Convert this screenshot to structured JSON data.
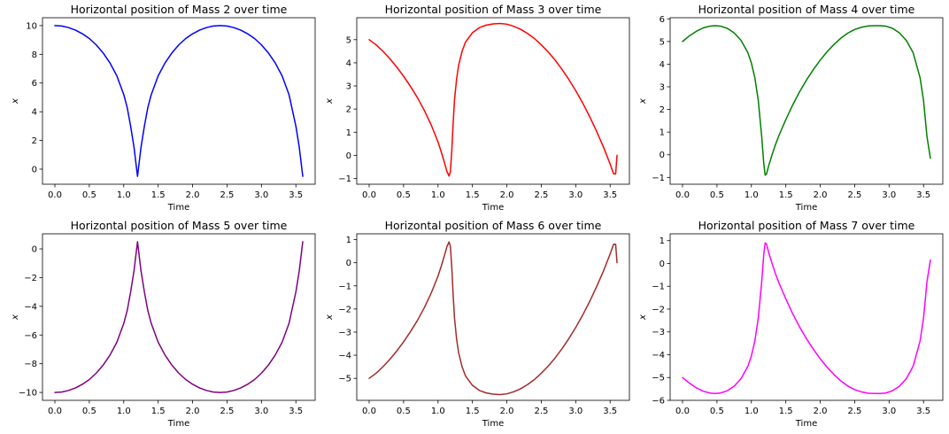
{
  "chart_data": [
    {
      "type": "line",
      "title": "Horizontal position of Mass 2 over time",
      "xlabel": "Time",
      "ylabel": "x",
      "xlim": [
        -0.18,
        3.78
      ],
      "ylim": [
        -1.05,
        10.55
      ],
      "xticks": [
        0.0,
        0.5,
        1.0,
        1.5,
        2.0,
        2.5,
        3.0,
        3.5
      ],
      "xtick_labels": [
        "0.0",
        "0.5",
        "1.0",
        "1.5",
        "2.0",
        "2.5",
        "3.0",
        "3.5"
      ],
      "yticks": [
        0,
        2,
        4,
        6,
        8,
        10
      ],
      "ytick_labels": [
        "0",
        "2",
        "4",
        "6",
        "8",
        "10"
      ],
      "grid": false,
      "series": [
        {
          "color": "#0000ff",
          "x": [
            0,
            0.1,
            0.2,
            0.3,
            0.4,
            0.5,
            0.6,
            0.7,
            0.8,
            0.9,
            1.0,
            1.05,
            1.1,
            1.15,
            1.2,
            1.25,
            1.3,
            1.35,
            1.4,
            1.5,
            1.6,
            1.7,
            1.8,
            1.9,
            2.0,
            2.1,
            2.2,
            2.3,
            2.4,
            2.5,
            2.6,
            2.7,
            2.8,
            2.9,
            3.0,
            3.1,
            3.2,
            3.3,
            3.4,
            3.5,
            3.55,
            3.6
          ],
          "y": [
            10.0,
            9.97,
            9.86,
            9.68,
            9.43,
            9.1,
            8.66,
            8.1,
            7.4,
            6.5,
            5.2,
            4.3,
            3.0,
            1.5,
            -0.5,
            1.5,
            3.0,
            4.3,
            5.2,
            6.5,
            7.4,
            8.1,
            8.66,
            9.1,
            9.43,
            9.68,
            9.86,
            9.97,
            10.0,
            9.97,
            9.86,
            9.68,
            9.43,
            9.1,
            8.66,
            8.1,
            7.4,
            6.5,
            5.2,
            3.0,
            1.5,
            -0.5
          ]
        }
      ]
    },
    {
      "type": "line",
      "title": "Horizontal position of Mass 3 over time",
      "xlabel": "Time",
      "ylabel": "x",
      "xlim": [
        -0.18,
        3.78
      ],
      "ylim": [
        -1.25,
        5.95
      ],
      "xticks": [
        0.0,
        0.5,
        1.0,
        1.5,
        2.0,
        2.5,
        3.0,
        3.5
      ],
      "xtick_labels": [
        "0.0",
        "0.5",
        "1.0",
        "1.5",
        "2.0",
        "2.5",
        "3.0",
        "3.5"
      ],
      "yticks": [
        -1,
        0,
        1,
        2,
        3,
        4,
        5
      ],
      "ytick_labels": [
        "−1",
        "0",
        "1",
        "2",
        "3",
        "4",
        "5"
      ],
      "grid": false,
      "series": [
        {
          "color": "#ff0000",
          "x": [
            0,
            0.1,
            0.2,
            0.3,
            0.4,
            0.5,
            0.6,
            0.7,
            0.8,
            0.9,
            1.0,
            1.05,
            1.1,
            1.13,
            1.16,
            1.18,
            1.2,
            1.22,
            1.24,
            1.27,
            1.3,
            1.35,
            1.4,
            1.5,
            1.6,
            1.7,
            1.8,
            1.9,
            2.0,
            2.1,
            2.2,
            2.3,
            2.4,
            2.5,
            2.6,
            2.7,
            2.8,
            2.9,
            3.0,
            3.1,
            3.2,
            3.3,
            3.4,
            3.5,
            3.55,
            3.58,
            3.6
          ],
          "y": [
            5.0,
            4.78,
            4.5,
            4.18,
            3.82,
            3.42,
            2.98,
            2.5,
            1.95,
            1.32,
            0.58,
            0.12,
            -0.38,
            -0.7,
            -0.9,
            -0.7,
            0.2,
            1.4,
            2.4,
            3.3,
            3.9,
            4.5,
            4.9,
            5.3,
            5.52,
            5.63,
            5.68,
            5.7,
            5.67,
            5.58,
            5.45,
            5.27,
            5.05,
            4.78,
            4.47,
            4.12,
            3.72,
            3.28,
            2.8,
            2.27,
            1.69,
            1.06,
            0.38,
            -0.38,
            -0.8,
            -0.8,
            0.0
          ]
        }
      ]
    },
    {
      "type": "line",
      "title": "Horizontal position of Mass 4 over time",
      "xlabel": "Time",
      "ylabel": "x",
      "xlim": [
        -0.18,
        3.78
      ],
      "ylim": [
        -1.3,
        6.05
      ],
      "xticks": [
        0.0,
        0.5,
        1.0,
        1.5,
        2.0,
        2.5,
        3.0,
        3.5
      ],
      "xtick_labels": [
        "0.0",
        "0.5",
        "1.0",
        "1.5",
        "2.0",
        "2.5",
        "3.0",
        "3.5"
      ],
      "yticks": [
        -1,
        0,
        1,
        2,
        3,
        4,
        5,
        6
      ],
      "ytick_labels": [
        "−1",
        "0",
        "1",
        "2",
        "3",
        "4",
        "5",
        "6"
      ],
      "grid": false,
      "series": [
        {
          "color": "#008000",
          "x": [
            0,
            0.1,
            0.2,
            0.3,
            0.4,
            0.47,
            0.55,
            0.65,
            0.75,
            0.85,
            0.95,
            1.0,
            1.05,
            1.1,
            1.15,
            1.18,
            1.2,
            1.22,
            1.25,
            1.3,
            1.35,
            1.4,
            1.5,
            1.6,
            1.7,
            1.8,
            1.9,
            2.0,
            2.1,
            2.2,
            2.3,
            2.4,
            2.5,
            2.6,
            2.7,
            2.8,
            2.87,
            2.95,
            3.05,
            3.15,
            3.25,
            3.35,
            3.45,
            3.5,
            3.55,
            3.6
          ],
          "y": [
            5.0,
            5.25,
            5.45,
            5.6,
            5.68,
            5.7,
            5.68,
            5.58,
            5.38,
            5.05,
            4.5,
            4.05,
            3.4,
            2.4,
            0.8,
            -0.4,
            -0.9,
            -0.85,
            -0.5,
            0.0,
            0.45,
            0.85,
            1.55,
            2.2,
            2.78,
            3.3,
            3.76,
            4.18,
            4.55,
            4.87,
            5.15,
            5.37,
            5.53,
            5.63,
            5.69,
            5.7,
            5.7,
            5.68,
            5.58,
            5.38,
            5.05,
            4.5,
            3.4,
            2.4,
            0.8,
            -0.15
          ]
        }
      ]
    },
    {
      "type": "line",
      "title": "Horizontal position of Mass 5 over time",
      "xlabel": "Time",
      "ylabel": "x",
      "xlim": [
        -0.18,
        3.78
      ],
      "ylim": [
        -10.55,
        1.05
      ],
      "xticks": [
        0.0,
        0.5,
        1.0,
        1.5,
        2.0,
        2.5,
        3.0,
        3.5
      ],
      "xtick_labels": [
        "0.0",
        "0.5",
        "1.0",
        "1.5",
        "2.0",
        "2.5",
        "3.0",
        "3.5"
      ],
      "yticks": [
        -10,
        -8,
        -6,
        -4,
        -2,
        0
      ],
      "ytick_labels": [
        "−10",
        "−8",
        "−6",
        "−4",
        "−2",
        "0"
      ],
      "grid": false,
      "series": [
        {
          "color": "#800080",
          "x": [
            0,
            0.1,
            0.2,
            0.3,
            0.4,
            0.5,
            0.6,
            0.7,
            0.8,
            0.9,
            1.0,
            1.05,
            1.1,
            1.15,
            1.2,
            1.25,
            1.3,
            1.35,
            1.4,
            1.5,
            1.6,
            1.7,
            1.8,
            1.9,
            2.0,
            2.1,
            2.2,
            2.3,
            2.4,
            2.5,
            2.6,
            2.7,
            2.8,
            2.9,
            3.0,
            3.1,
            3.2,
            3.3,
            3.4,
            3.5,
            3.55,
            3.6
          ],
          "y": [
            -10.0,
            -9.97,
            -9.86,
            -9.68,
            -9.43,
            -9.1,
            -8.66,
            -8.1,
            -7.4,
            -6.5,
            -5.2,
            -4.3,
            -3.0,
            -1.5,
            0.5,
            -1.5,
            -3.0,
            -4.3,
            -5.2,
            -6.5,
            -7.4,
            -8.1,
            -8.66,
            -9.1,
            -9.43,
            -9.68,
            -9.86,
            -9.97,
            -10.0,
            -9.97,
            -9.86,
            -9.68,
            -9.43,
            -9.1,
            -8.66,
            -8.1,
            -7.4,
            -6.5,
            -5.2,
            -3.0,
            -1.5,
            0.5
          ]
        }
      ]
    },
    {
      "type": "line",
      "title": "Horizontal position of Mass 6 over time",
      "xlabel": "Time",
      "ylabel": "x",
      "xlim": [
        -0.18,
        3.78
      ],
      "ylim": [
        -5.95,
        1.25
      ],
      "xticks": [
        0.0,
        0.5,
        1.0,
        1.5,
        2.0,
        2.5,
        3.0,
        3.5
      ],
      "xtick_labels": [
        "0.0",
        "0.5",
        "1.0",
        "1.5",
        "2.0",
        "2.5",
        "3.0",
        "3.5"
      ],
      "yticks": [
        -5,
        -4,
        -3,
        -2,
        -1,
        0,
        1
      ],
      "ytick_labels": [
        "−5",
        "−4",
        "−3",
        "−2",
        "−1",
        "0",
        "1"
      ],
      "grid": false,
      "series": [
        {
          "color": "#a52a2a",
          "x": [
            0,
            0.1,
            0.2,
            0.3,
            0.4,
            0.5,
            0.6,
            0.7,
            0.8,
            0.9,
            1.0,
            1.05,
            1.1,
            1.13,
            1.16,
            1.18,
            1.2,
            1.22,
            1.24,
            1.27,
            1.3,
            1.35,
            1.4,
            1.5,
            1.6,
            1.7,
            1.8,
            1.9,
            2.0,
            2.1,
            2.2,
            2.3,
            2.4,
            2.5,
            2.6,
            2.7,
            2.8,
            2.9,
            3.0,
            3.1,
            3.2,
            3.3,
            3.4,
            3.5,
            3.55,
            3.58,
            3.6
          ],
          "y": [
            -5.0,
            -4.78,
            -4.5,
            -4.18,
            -3.82,
            -3.42,
            -2.98,
            -2.5,
            -1.95,
            -1.32,
            -0.58,
            -0.12,
            0.38,
            0.7,
            0.9,
            0.7,
            -0.2,
            -1.4,
            -2.4,
            -3.3,
            -3.9,
            -4.5,
            -4.9,
            -5.3,
            -5.52,
            -5.63,
            -5.68,
            -5.7,
            -5.67,
            -5.58,
            -5.45,
            -5.27,
            -5.05,
            -4.78,
            -4.47,
            -4.12,
            -3.72,
            -3.28,
            -2.8,
            -2.27,
            -1.69,
            -1.06,
            -0.38,
            0.38,
            0.8,
            0.8,
            0.0
          ]
        }
      ]
    },
    {
      "type": "line",
      "title": "Horizontal position of Mass 7 over time",
      "xlabel": "Time",
      "ylabel": "x",
      "xlim": [
        -0.18,
        3.78
      ],
      "ylim": [
        -6.0,
        1.3
      ],
      "xticks": [
        0.0,
        0.5,
        1.0,
        1.5,
        2.0,
        2.5,
        3.0,
        3.5
      ],
      "xtick_labels": [
        "0.0",
        "0.5",
        "1.0",
        "1.5",
        "2.0",
        "2.5",
        "3.0",
        "3.5"
      ],
      "yticks": [
        -6,
        -5,
        -4,
        -3,
        -2,
        -1,
        0,
        1
      ],
      "ytick_labels": [
        "−6",
        "−5",
        "−4",
        "−3",
        "−2",
        "−1",
        "0",
        "1"
      ],
      "grid": false,
      "series": [
        {
          "color": "#ff00ff",
          "x": [
            0,
            0.1,
            0.2,
            0.3,
            0.4,
            0.47,
            0.55,
            0.65,
            0.75,
            0.85,
            0.95,
            1.0,
            1.05,
            1.1,
            1.15,
            1.18,
            1.2,
            1.22,
            1.25,
            1.3,
            1.35,
            1.4,
            1.5,
            1.6,
            1.7,
            1.8,
            1.9,
            2.0,
            2.1,
            2.2,
            2.3,
            2.4,
            2.5,
            2.6,
            2.7,
            2.8,
            2.87,
            2.95,
            3.05,
            3.15,
            3.25,
            3.35,
            3.45,
            3.5,
            3.55,
            3.6
          ],
          "y": [
            -5.0,
            -5.25,
            -5.45,
            -5.6,
            -5.68,
            -5.7,
            -5.68,
            -5.58,
            -5.38,
            -5.05,
            -4.5,
            -4.05,
            -3.4,
            -2.4,
            -0.8,
            0.4,
            0.9,
            0.85,
            0.5,
            0.0,
            -0.45,
            -0.85,
            -1.55,
            -2.2,
            -2.78,
            -3.3,
            -3.76,
            -4.18,
            -4.55,
            -4.87,
            -5.15,
            -5.37,
            -5.53,
            -5.63,
            -5.69,
            -5.7,
            -5.7,
            -5.68,
            -5.58,
            -5.38,
            -5.05,
            -4.5,
            -3.4,
            -2.4,
            -0.8,
            0.15
          ]
        }
      ]
    }
  ]
}
